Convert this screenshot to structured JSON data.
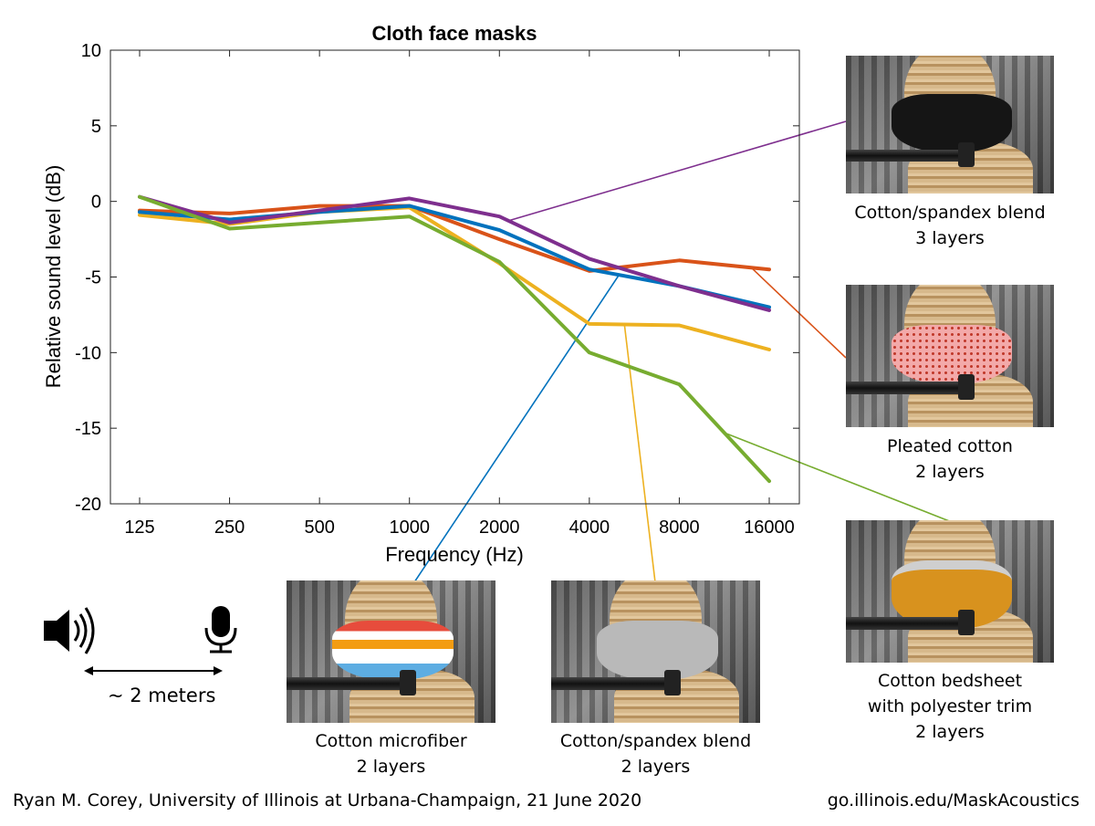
{
  "chart_data": {
    "type": "line",
    "title": "Cloth face masks",
    "xlabel": "Frequency (Hz)",
    "ylabel": "Relative sound level (dB)",
    "x_scale": "log2",
    "categories": [
      "125",
      "250",
      "500",
      "1000",
      "2000",
      "4000",
      "8000",
      "16000"
    ],
    "x": [
      125,
      250,
      500,
      1000,
      2000,
      4000,
      8000,
      16000
    ],
    "ylim": [
      -20,
      10
    ],
    "yticks": [
      10,
      5,
      0,
      -5,
      -10,
      -15,
      -20
    ],
    "grid": false,
    "series": [
      {
        "name": "Pleated cotton, 2 layers",
        "color": "#d95319",
        "values": [
          -0.6,
          -0.8,
          -0.3,
          -0.3,
          -2.5,
          -4.6,
          -3.9,
          -4.5
        ]
      },
      {
        "name": "Cotton/spandex blend, 2 layers",
        "color": "#edb120",
        "values": [
          -0.9,
          -1.5,
          -0.7,
          -0.4,
          -4.1,
          -8.1,
          -8.2,
          -9.8
        ]
      },
      {
        "name": "Cotton microfiber, 2 layers",
        "color": "#0072bd",
        "values": [
          -0.7,
          -1.2,
          -0.7,
          -0.3,
          -1.9,
          -4.5,
          -5.6,
          -7.0
        ]
      },
      {
        "name": "Cotton/spandex blend, 3 layers",
        "color": "#7e2f8e",
        "values": [
          0.3,
          -1.4,
          -0.6,
          0.2,
          -1.0,
          -3.8,
          -5.6,
          -7.2
        ]
      },
      {
        "name": "Cotton bedsheet with polyester trim, 2 layers",
        "color": "#77ac30",
        "values": [
          0.3,
          -1.8,
          -1.4,
          -1.0,
          -4.0,
          -10.0,
          -12.1,
          -18.5
        ]
      }
    ]
  },
  "photos": [
    {
      "key": "spandex3",
      "line1": "Cotton/spandex blend",
      "line2": "3 layers",
      "mask_color": "#151515"
    },
    {
      "key": "pleated",
      "line1": "Pleated cotton",
      "line2": "2 layers",
      "mask_color": "#f3a9a9"
    },
    {
      "key": "bedsheet",
      "line1": "Cotton bedsheet",
      "line2": "with polyester trim",
      "line3": "2 layers",
      "mask_color": "#d8921e"
    },
    {
      "key": "microfiber",
      "line1": "Cotton microfiber",
      "line2": "2 layers",
      "mask_color": "#f5f5f5"
    },
    {
      "key": "spandex2",
      "line1": "Cotton/spandex blend",
      "line2": "2 layers",
      "mask_color": "#b9b9b9"
    }
  ],
  "setup": {
    "speaker_icon": "speaker-icon",
    "microphone_icon": "microphone-icon",
    "distance_label": "~ 2 meters"
  },
  "footer": {
    "credit": "Ryan M. Corey, University of Illinois at Urbana-Champaign, 21 June 2020",
    "url": "go.illinois.edu/MaskAcoustics"
  }
}
